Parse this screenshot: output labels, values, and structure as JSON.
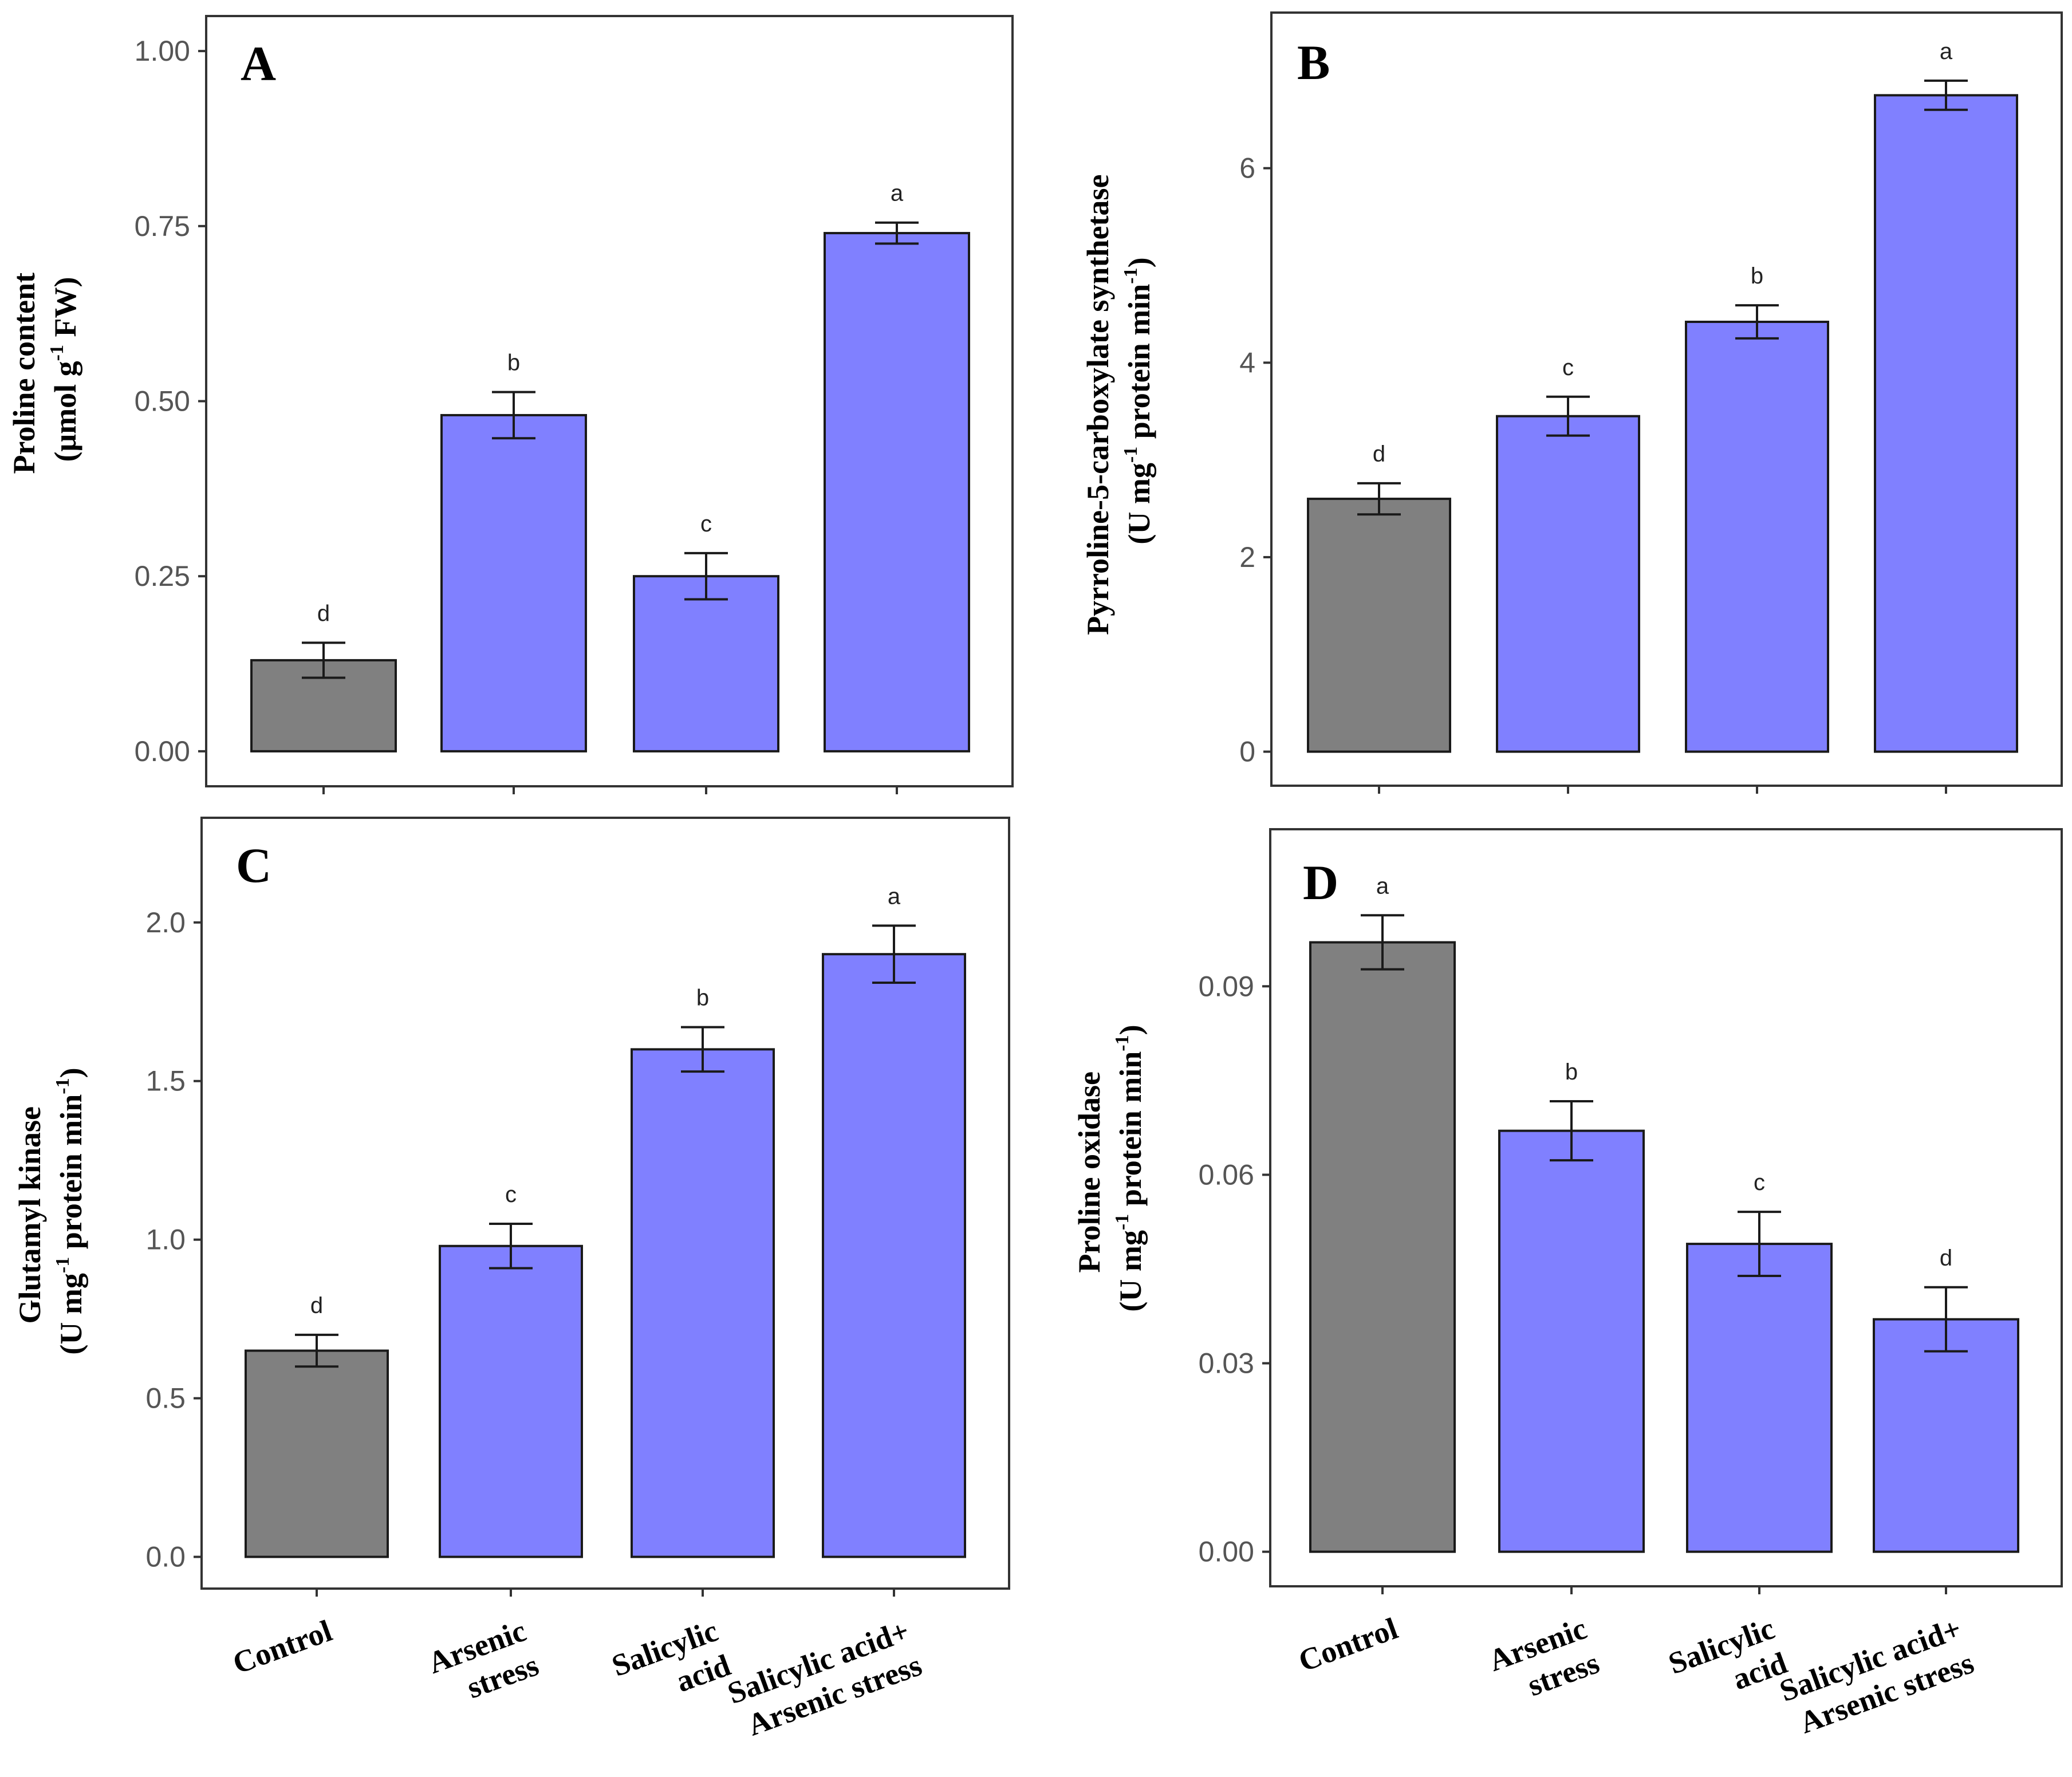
{
  "colors": {
    "control": "#808080",
    "treatment": "#8080ff"
  },
  "chart_data": [
    {
      "type": "bar",
      "panel": "A",
      "categories": [
        "Control",
        "Arsenic stress",
        "Salicylic acid",
        "Salicylic acid+ Arsenic stress"
      ],
      "values": [
        0.13,
        0.48,
        0.25,
        0.74
      ],
      "errors": [
        0.025,
        0.033,
        0.033,
        0.015
      ],
      "significance": [
        "d",
        "b",
        "c",
        "a"
      ],
      "ylabel": [
        "Proline content",
        "(μmol g",
        "-1",
        " FW)"
      ],
      "ylim": [
        -0.05,
        1.05
      ],
      "yticks": [
        0.0,
        0.25,
        0.5,
        0.75,
        1.0
      ],
      "yticklabels": [
        "0.00",
        "0.25",
        "0.50",
        "0.75",
        "1.00"
      ]
    },
    {
      "type": "bar",
      "panel": "B",
      "categories": [
        "Control",
        "Arsenic stress",
        "Salicylic acid",
        "Salicylic acid+ Arsenic stress"
      ],
      "values": [
        2.6,
        3.45,
        4.42,
        6.75
      ],
      "errors": [
        0.16,
        0.2,
        0.17,
        0.15
      ],
      "significance": [
        "d",
        "c",
        "b",
        "a"
      ],
      "ylabel": [
        "Pyrroline-5-carboxylate synthetase",
        "(U mg",
        "-1",
        " protein min",
        "-1",
        ")"
      ],
      "ylim": [
        -0.35,
        7.6
      ],
      "yticks": [
        0,
        2,
        4,
        6
      ],
      "yticklabels": [
        "0",
        "2",
        "4",
        "6"
      ]
    },
    {
      "type": "bar",
      "panel": "C",
      "categories": [
        "Control",
        "Arsenic stress",
        "Salicylic acid",
        "Salicylic acid+ Arsenic stress"
      ],
      "values": [
        0.65,
        0.98,
        1.6,
        1.9
      ],
      "errors": [
        0.05,
        0.07,
        0.07,
        0.09
      ],
      "significance": [
        "d",
        "c",
        "b",
        "a"
      ],
      "ylabel": [
        "Glutamyl kinase",
        "(U mg",
        "-1",
        " protein min",
        "-1",
        ")"
      ],
      "ylim": [
        -0.1,
        2.33
      ],
      "yticks": [
        0.0,
        0.5,
        1.0,
        1.5,
        2.0
      ],
      "yticklabels": [
        "0.0",
        "0.5",
        "1.0",
        "1.5",
        "2.0"
      ],
      "xtick_labels": [
        [
          "Control"
        ],
        [
          "Arsenic",
          "stress"
        ],
        [
          "Salicylic",
          "acid"
        ],
        [
          "Salicylic acid+",
          "Arsenic stress"
        ]
      ]
    },
    {
      "type": "bar",
      "panel": "D",
      "categories": [
        "Control",
        "Arsenic stress",
        "Salicylic acid",
        "Salicylic acid+ Arsenic stress"
      ],
      "values": [
        0.097,
        0.067,
        0.049,
        0.037
      ],
      "errors": [
        0.0043,
        0.0047,
        0.0051,
        0.0051
      ],
      "significance": [
        "a",
        "b",
        "c",
        "d"
      ],
      "ylabel": [
        "Proline oxidase",
        "(U mg",
        "-1",
        " protein min",
        "-1",
        ")"
      ],
      "ylim": [
        -0.0055,
        0.115
      ],
      "yticks": [
        0.0,
        0.03,
        0.06,
        0.09
      ],
      "yticklabels": [
        "0.00",
        "0.03",
        "0.06",
        "0.09"
      ],
      "xtick_labels": [
        [
          "Control"
        ],
        [
          "Arsenic",
          "stress"
        ],
        [
          "Salicylic",
          "acid"
        ],
        [
          "Salicylic acid+",
          "Arsenic stress"
        ]
      ]
    }
  ]
}
